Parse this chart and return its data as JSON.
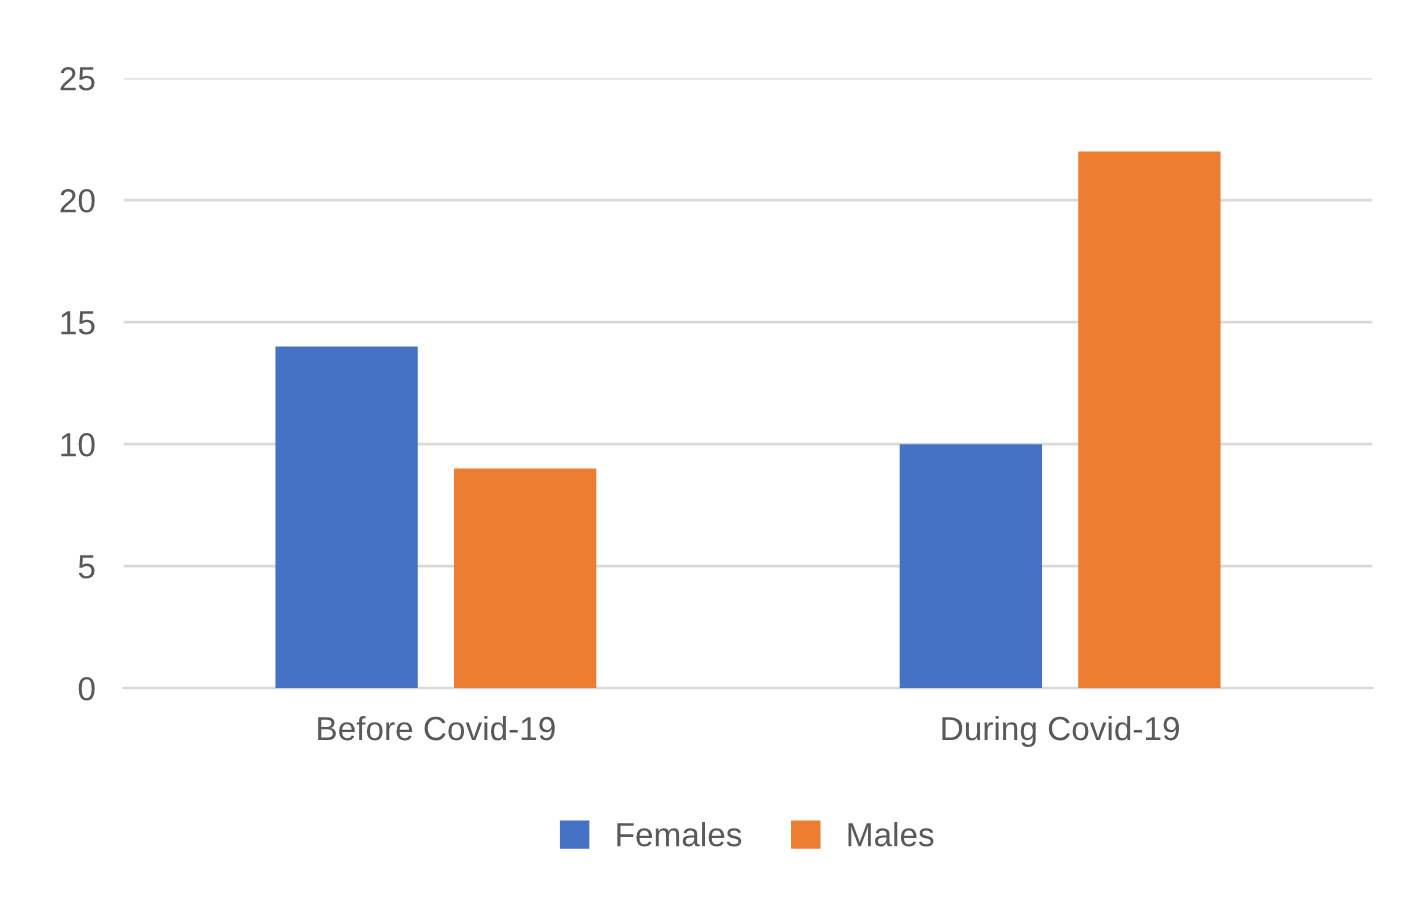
{
  "chart_data": {
    "type": "bar",
    "categories": [
      "Before Covid-19",
      "During Covid-19"
    ],
    "series": [
      {
        "name": "Females",
        "color": "#4472c4",
        "values": [
          14,
          10
        ]
      },
      {
        "name": "Males",
        "color": "#ed7d31",
        "values": [
          9,
          22
        ]
      }
    ],
    "ylim": [
      0,
      25
    ],
    "yticks": [
      0,
      5,
      10,
      15,
      20,
      25
    ],
    "grid": "y",
    "legend": "bottom"
  }
}
